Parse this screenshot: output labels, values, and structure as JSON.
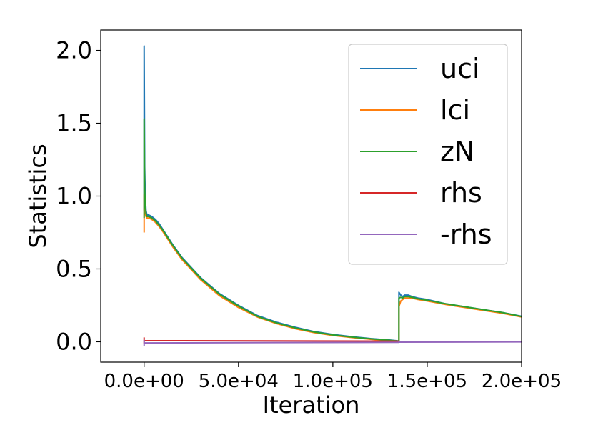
{
  "chart_data": {
    "type": "line",
    "title": "",
    "xlabel": "Iteration",
    "ylabel": "Statistics",
    "xlim": [
      -23000,
      200000
    ],
    "ylim": [
      -0.14,
      2.14
    ],
    "xticks": [
      0,
      50000,
      100000,
      150000,
      200000
    ],
    "xtick_labels": [
      "0.0e+00",
      "5.0e+04",
      "1.0e+05",
      "1.5e+05",
      "2.0e+05"
    ],
    "yticks": [
      0.0,
      0.5,
      1.0,
      1.5,
      2.0
    ],
    "ytick_labels": [
      "0.0",
      "0.5",
      "1.0",
      "1.5",
      "2.0"
    ],
    "grid": false,
    "legend_position": "top-right",
    "series": [
      {
        "name": "uci",
        "color": "#1f77b4",
        "x": [
          0,
          0,
          300,
          600,
          1000,
          1500,
          2500,
          4000,
          6000,
          8000,
          10000,
          15000,
          20000,
          30000,
          40000,
          50000,
          60000,
          70000,
          80000,
          90000,
          100000,
          110000,
          120000,
          130000,
          135000,
          135000,
          136000,
          137000,
          138000,
          140000,
          142000,
          145000,
          150000,
          160000,
          170000,
          180000,
          190000,
          200000
        ],
        "y": [
          0.9,
          2.03,
          1.2,
          1.0,
          0.9,
          0.87,
          0.87,
          0.86,
          0.84,
          0.81,
          0.77,
          0.67,
          0.58,
          0.44,
          0.33,
          0.25,
          0.18,
          0.135,
          0.1,
          0.07,
          0.05,
          0.035,
          0.022,
          0.012,
          0.005,
          0.34,
          0.32,
          0.31,
          0.32,
          0.32,
          0.31,
          0.3,
          0.29,
          0.26,
          0.24,
          0.22,
          0.2,
          0.175
        ]
      },
      {
        "name": "lci",
        "color": "#ff7f0e",
        "x": [
          0,
          0,
          300,
          600,
          1000,
          1500,
          2500,
          4000,
          6000,
          8000,
          10000,
          15000,
          20000,
          30000,
          40000,
          50000,
          60000,
          70000,
          80000,
          90000,
          100000,
          110000,
          120000,
          130000,
          135000,
          135000,
          136000,
          137000,
          138000,
          140000,
          142000,
          145000,
          150000,
          160000,
          170000,
          180000,
          190000,
          200000
        ],
        "y": [
          0.75,
          1.01,
          0.9,
          0.88,
          0.86,
          0.85,
          0.85,
          0.84,
          0.82,
          0.79,
          0.755,
          0.655,
          0.565,
          0.425,
          0.315,
          0.235,
          0.17,
          0.125,
          0.09,
          0.063,
          0.043,
          0.029,
          0.017,
          0.008,
          0.002,
          0.24,
          0.28,
          0.29,
          0.3,
          0.3,
          0.3,
          0.29,
          0.28,
          0.255,
          0.235,
          0.215,
          0.195,
          0.17
        ]
      },
      {
        "name": "zN",
        "color": "#2ca02c",
        "x": [
          0,
          0,
          300,
          600,
          1000,
          1500,
          2500,
          4000,
          6000,
          8000,
          10000,
          15000,
          20000,
          30000,
          40000,
          50000,
          60000,
          70000,
          80000,
          90000,
          100000,
          110000,
          120000,
          130000,
          135000,
          135000,
          136000,
          137000,
          138000,
          140000,
          142000,
          145000,
          150000,
          160000,
          170000,
          180000,
          190000,
          200000
        ],
        "y": [
          0.85,
          1.53,
          1.05,
          0.95,
          0.88,
          0.86,
          0.86,
          0.85,
          0.83,
          0.8,
          0.765,
          0.665,
          0.575,
          0.435,
          0.325,
          0.245,
          0.175,
          0.13,
          0.095,
          0.067,
          0.047,
          0.032,
          0.02,
          0.01,
          0.004,
          0.3,
          0.305,
          0.3,
          0.31,
          0.31,
          0.305,
          0.295,
          0.285,
          0.26,
          0.24,
          0.22,
          0.2,
          0.173
        ]
      },
      {
        "name": "rhs",
        "color": "#d62728",
        "x": [
          0,
          0,
          0,
          135000,
          135000,
          135000,
          200000
        ],
        "y": [
          0.03,
          -0.01,
          0.008,
          0.004,
          0.0,
          0.003,
          0.001
        ]
      },
      {
        "name": "-rhs",
        "color": "#9467bd",
        "x": [
          0,
          0,
          0,
          135000,
          135000,
          135000,
          200000
        ],
        "y": [
          -0.03,
          0.01,
          -0.008,
          -0.004,
          0.0,
          -0.003,
          -0.001
        ]
      }
    ]
  }
}
